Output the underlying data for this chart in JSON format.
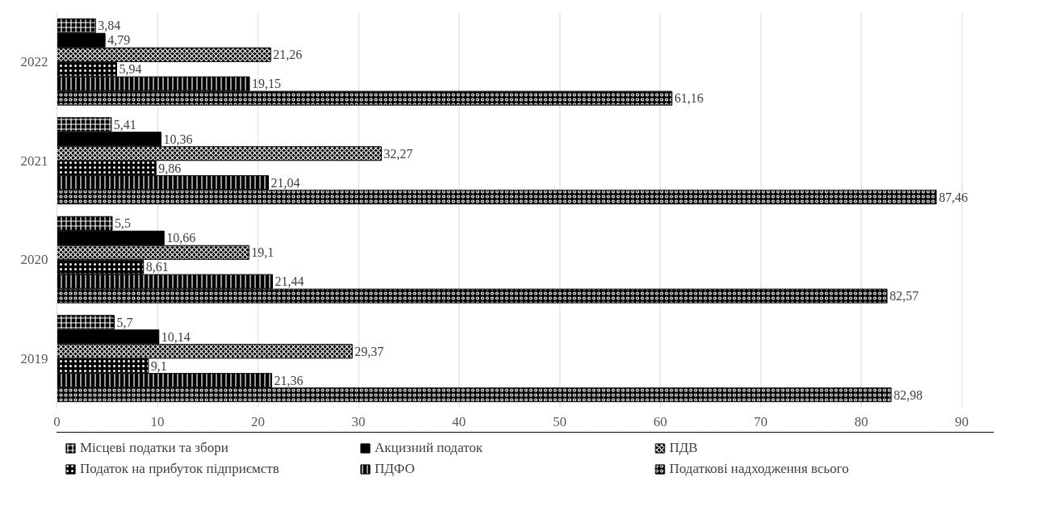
{
  "chart_data": {
    "type": "bar",
    "orientation": "horizontal",
    "categories": [
      "2022",
      "2021",
      "2020",
      "2019"
    ],
    "series": [
      {
        "name": "Місцеві податки та збори",
        "color": "#000000",
        "values": [
          3.84,
          5.41,
          5.5,
          5.7
        ],
        "value_labels": [
          "3,84",
          "5,41",
          "5,5",
          "5,7"
        ]
      },
      {
        "name": "Акцизний податок",
        "color": "#000000",
        "values": [
          4.79,
          10.36,
          10.66,
          10.14
        ],
        "value_labels": [
          "4,79",
          "10,36",
          "10,66",
          "10,14"
        ]
      },
      {
        "name": "ПДВ",
        "color": "#000000",
        "values": [
          21.26,
          32.27,
          19.1,
          29.37
        ],
        "value_labels": [
          "21,26",
          "32,27",
          "19,1",
          "29,37"
        ]
      },
      {
        "name": "Податок на прибуток підприємств",
        "color": "#000000",
        "values": [
          5.94,
          9.86,
          8.61,
          9.1
        ],
        "value_labels": [
          "5,94",
          "9,86",
          "8,61",
          "9,1"
        ]
      },
      {
        "name": "ПДФО",
        "color": "#000000",
        "values": [
          19.15,
          21.04,
          21.44,
          21.36
        ],
        "value_labels": [
          "19,15",
          "21,04",
          "21,44",
          "21,36"
        ]
      },
      {
        "name": "Податкові надходження всього",
        "color": "#000000",
        "values": [
          61.16,
          87.46,
          82.57,
          82.98
        ],
        "value_labels": [
          "61,16",
          "87,46",
          "82,57",
          "82,98"
        ]
      }
    ],
    "xlim": [
      0,
      90
    ],
    "xticks": [
      0,
      10,
      20,
      30,
      40,
      50,
      60,
      70,
      80,
      90
    ],
    "grid": "x",
    "legend": "bottom"
  }
}
